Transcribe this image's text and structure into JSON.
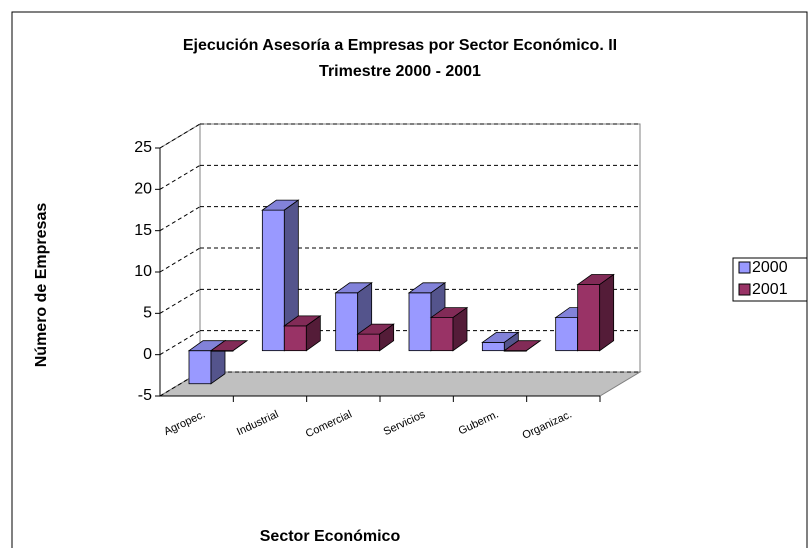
{
  "chart_data": {
    "type": "bar",
    "title": "Ejecución Asesoría a Empresas por Sector Económico. II Trimestre 2000 - 2001",
    "x_label": "Sector Económico",
    "y_label": "Número de Empresas",
    "categories": [
      "Agropec.",
      "Industrial",
      "Comercial",
      "Servicios",
      "Guberm.",
      "Organizac."
    ],
    "series": [
      {
        "name": "2000",
        "color": "#9999ff",
        "values": [
          -4,
          17,
          7,
          7,
          1,
          4
        ]
      },
      {
        "name": "2001",
        "color": "#993366",
        "values": [
          0,
          3,
          2,
          4,
          0,
          8
        ]
      }
    ],
    "ylim": [
      -5,
      25
    ],
    "yticks": [
      -5,
      0,
      5,
      10,
      15,
      20,
      25
    ],
    "grid": true,
    "legend": "right"
  }
}
